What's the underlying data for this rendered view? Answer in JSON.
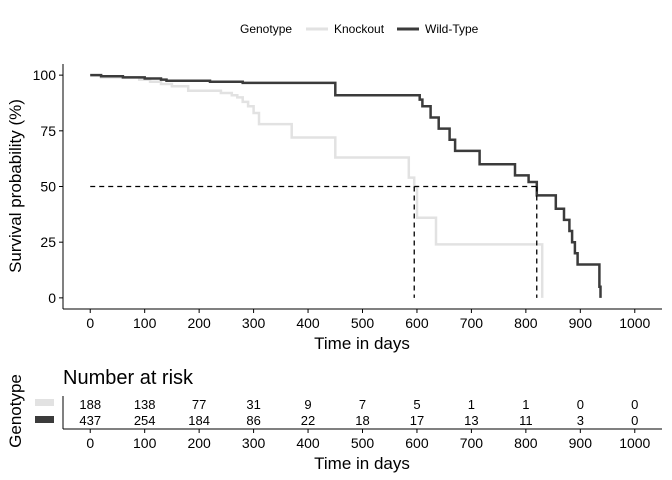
{
  "chart_data": [
    {
      "type": "line",
      "subtype": "kaplan-meier",
      "legend": {
        "title": "Genotype",
        "position": "top",
        "entries": [
          "Knockout",
          "Wild-Type"
        ]
      },
      "xlabel": "Time in days",
      "ylabel": "Survival probability (%)",
      "xlim": [
        -50,
        1050
      ],
      "ylim": [
        -5,
        105
      ],
      "xticks": [
        0,
        100,
        200,
        300,
        400,
        500,
        600,
        700,
        800,
        900,
        1000
      ],
      "yticks": [
        0,
        25,
        50,
        75,
        100
      ],
      "grid": false,
      "median_lines": [
        {
          "series": "Knockout",
          "x": 595,
          "y": 50
        },
        {
          "series": "Wild-Type",
          "x": 820,
          "y": 50
        }
      ],
      "series": [
        {
          "name": "Knockout",
          "color": "#e2e2e2",
          "steps": [
            [
              0,
              100
            ],
            [
              20,
              99
            ],
            [
              90,
              98
            ],
            [
              110,
              97
            ],
            [
              130,
              96
            ],
            [
              150,
              95
            ],
            [
              180,
              93
            ],
            [
              240,
              92
            ],
            [
              260,
              91
            ],
            [
              270,
              90
            ],
            [
              280,
              88
            ],
            [
              290,
              86
            ],
            [
              300,
              83
            ],
            [
              310,
              78
            ],
            [
              370,
              72
            ],
            [
              450,
              63
            ],
            [
              585,
              54
            ],
            [
              595,
              50
            ],
            [
              600,
              36
            ],
            [
              635,
              24
            ],
            [
              830,
              24
            ],
            [
              830,
              0
            ]
          ]
        },
        {
          "name": "Wild-Type",
          "color": "#3b3b3b",
          "steps": [
            [
              0,
              100
            ],
            [
              20,
              99.5
            ],
            [
              60,
              99
            ],
            [
              100,
              98.5
            ],
            [
              130,
              98
            ],
            [
              140,
              97.5
            ],
            [
              220,
              97
            ],
            [
              280,
              96.5
            ],
            [
              450,
              91
            ],
            [
              600,
              91
            ],
            [
              605,
              89
            ],
            [
              610,
              86
            ],
            [
              625,
              81
            ],
            [
              640,
              76
            ],
            [
              660,
              71
            ],
            [
              670,
              66
            ],
            [
              715,
              60
            ],
            [
              780,
              55
            ],
            [
              805,
              52
            ],
            [
              820,
              46
            ],
            [
              855,
              40
            ],
            [
              870,
              35
            ],
            [
              880,
              30
            ],
            [
              885,
              25
            ],
            [
              890,
              20
            ],
            [
              895,
              15
            ],
            [
              935,
              5
            ],
            [
              937,
              0
            ]
          ]
        }
      ]
    },
    {
      "type": "table",
      "title": "Number at risk",
      "ylabel": "Genotype",
      "xlabel": "Time in days",
      "xticks": [
        0,
        100,
        200,
        300,
        400,
        500,
        600,
        700,
        800,
        900,
        1000
      ],
      "rows": [
        {
          "name": "Knockout",
          "color": "#e2e2e2",
          "values": [
            188,
            138,
            77,
            31,
            9,
            7,
            5,
            1,
            1,
            0,
            0
          ]
        },
        {
          "name": "Wild-Type",
          "color": "#3b3b3b",
          "values": [
            437,
            254,
            184,
            86,
            22,
            18,
            17,
            13,
            11,
            3,
            0
          ]
        }
      ]
    }
  ]
}
